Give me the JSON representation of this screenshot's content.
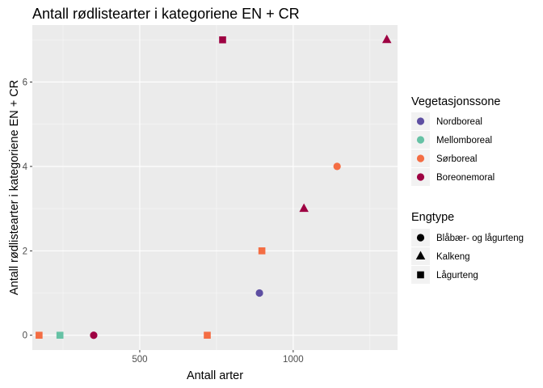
{
  "chart_data": {
    "type": "scatter",
    "title": "Antall rødlistearter i kategoriene EN + CR",
    "xlabel": "Antall arter",
    "ylabel": "Antall rødlistearter i kategoriene EN + CR",
    "xlim": [
      150,
      1340
    ],
    "ylim": [
      -0.35,
      7.35
    ],
    "x_ticks": [
      500,
      1000
    ],
    "x_tick_labels": [
      "500",
      "1000"
    ],
    "y_ticks": [
      0,
      2,
      4,
      6
    ],
    "y_tick_labels": [
      "0",
      "2",
      "4",
      "6"
    ],
    "grid": true,
    "legend_position": "right",
    "legend_color": {
      "title": "Vegetasjonssone",
      "entries": [
        {
          "label": "Nordboreal",
          "color": "#5e4fa2"
        },
        {
          "label": "Mellomboreal",
          "color": "#66c2a5"
        },
        {
          "label": "Sørboreal",
          "color": "#f46d43"
        },
        {
          "label": "Boreonemoral",
          "color": "#9e0142"
        }
      ]
    },
    "legend_shape": {
      "title": "Engtype",
      "entries": [
        {
          "label": "Blåbær- og lågurteng",
          "shape": "circle"
        },
        {
          "label": "Kalkeng",
          "shape": "triangle"
        },
        {
          "label": "Lågurteng",
          "shape": "square"
        }
      ]
    },
    "points": [
      {
        "x": 172,
        "y": 0,
        "zone": "Sørboreal",
        "engtype": "Lågurteng"
      },
      {
        "x": 240,
        "y": 0,
        "zone": "Mellomboreal",
        "engtype": "Lågurteng"
      },
      {
        "x": 350,
        "y": 0,
        "zone": "Boreonemoral",
        "engtype": "Blåbær- og lågurteng"
      },
      {
        "x": 720,
        "y": 0,
        "zone": "Sørboreal",
        "engtype": "Lågurteng"
      },
      {
        "x": 770,
        "y": 7,
        "zone": "Boreonemoral",
        "engtype": "Lågurteng"
      },
      {
        "x": 890,
        "y": 1,
        "zone": "Nordboreal",
        "engtype": "Blåbær- og lågurteng"
      },
      {
        "x": 898,
        "y": 2,
        "zone": "Sørboreal",
        "engtype": "Lågurteng"
      },
      {
        "x": 1035,
        "y": 3,
        "zone": "Boreonemoral",
        "engtype": "Kalkeng"
      },
      {
        "x": 1143,
        "y": 4,
        "zone": "Sørboreal",
        "engtype": "Blåbær- og lågurteng"
      },
      {
        "x": 1305,
        "y": 7,
        "zone": "Boreonemoral",
        "engtype": "Kalkeng"
      }
    ]
  }
}
